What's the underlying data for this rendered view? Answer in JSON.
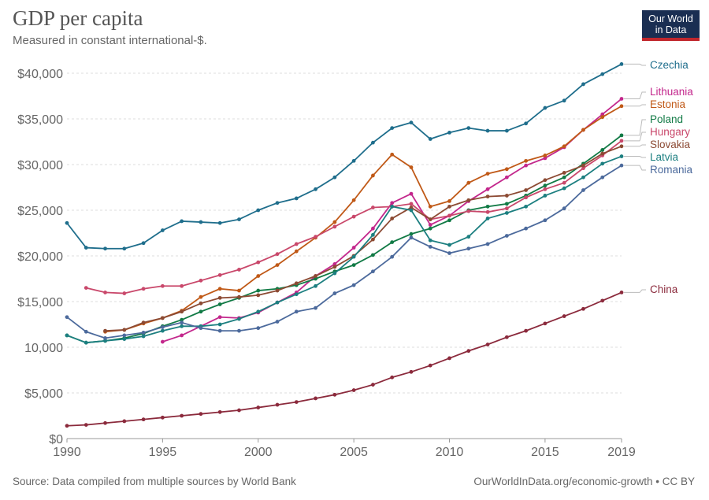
{
  "header": {
    "title": "GDP per capita",
    "subtitle": "Measured in constant international-$.",
    "logo_line1": "Our World",
    "logo_line2": "in Data"
  },
  "footer": {
    "source": "Source: Data compiled from multiple sources by World Bank",
    "license": "OurWorldInData.org/economic-growth • CC BY"
  },
  "chart_data": {
    "type": "line",
    "title": "GDP per capita",
    "subtitle": "Measured in constant international-$.",
    "xlim": [
      1990,
      2019
    ],
    "ylim": [
      0,
      40000
    ],
    "x_ticks": [
      1990,
      1995,
      2000,
      2005,
      2010,
      2015,
      2019
    ],
    "y_ticks": [
      0,
      5000,
      10000,
      15000,
      20000,
      25000,
      30000,
      35000,
      40000
    ],
    "y_tick_labels": [
      "$0",
      "$5,000",
      "10,000",
      "$15,000",
      "$20,000",
      "$25,000",
      "$30,000",
      "$35,000",
      "$40,000"
    ],
    "grid": "horizontal dashed",
    "legend": "right (labels at line ends)",
    "series": [
      {
        "name": "Czechia",
        "color": "#1f6e8c",
        "x_start": 1990,
        "values": [
          23600,
          20900,
          20800,
          20800,
          21400,
          22800,
          23800,
          23700,
          23600,
          24000,
          25000,
          25800,
          26300,
          27300,
          28600,
          30400,
          32400,
          34000,
          34600,
          32800,
          33500,
          34000,
          33700,
          33700,
          34500,
          36200,
          37000,
          38800,
          39900,
          41000
        ]
      },
      {
        "name": "Lithuania",
        "color": "#c3278c",
        "x_start": 1995,
        "values": [
          10600,
          11300,
          12300,
          13300,
          13200,
          13800,
          14900,
          16000,
          17800,
          19100,
          20900,
          23000,
          25800,
          26800,
          23400,
          24400,
          26000,
          27300,
          28600,
          29900,
          30700,
          31900,
          33800,
          35500,
          37200
        ]
      },
      {
        "name": "Estonia",
        "color": "#c05917",
        "x_start": 1992,
        "values": [
          11700,
          11900,
          12600,
          13200,
          14000,
          15500,
          16400,
          16200,
          17800,
          19000,
          20500,
          22000,
          23700,
          26100,
          28800,
          31100,
          29700,
          25400,
          26000,
          28000,
          29000,
          29500,
          30400,
          31000,
          32000,
          33800,
          35200,
          36400
        ]
      },
      {
        "name": "Poland",
        "color": "#117a45",
        "x_start": 1990,
        "values": [
          11300,
          10500,
          10700,
          11000,
          11500,
          12300,
          13000,
          13900,
          14700,
          15400,
          16200,
          16400,
          16800,
          17500,
          18300,
          19000,
          20100,
          21500,
          22400,
          23000,
          23900,
          25000,
          25400,
          25700,
          26600,
          27700,
          28600,
          30100,
          31600,
          33200
        ]
      },
      {
        "name": "Hungary",
        "color": "#c9486b",
        "x_start": 1991,
        "values": [
          16500,
          16000,
          15900,
          16400,
          16700,
          16700,
          17300,
          17900,
          18500,
          19300,
          20200,
          21300,
          22100,
          23200,
          24300,
          25300,
          25400,
          25700,
          24000,
          24400,
          24900,
          24800,
          25200,
          26400,
          27300,
          28000,
          29600,
          31000,
          32600
        ]
      },
      {
        "name": "Slovakia",
        "color": "#8c4a33",
        "x_start": 1992,
        "values": [
          11800,
          11900,
          12700,
          13200,
          13900,
          14800,
          15400,
          15500,
          15700,
          16200,
          17000,
          17800,
          18800,
          20000,
          21800,
          24100,
          25300,
          24000,
          25400,
          26100,
          26500,
          26600,
          27200,
          28300,
          29100,
          29900,
          31200,
          32000
        ]
      },
      {
        "name": "Latvia",
        "color": "#1c7f80",
        "x_start": 1990,
        "values": [
          11300,
          10500,
          10700,
          10900,
          11200,
          11800,
          12300,
          12300,
          12500,
          13100,
          13900,
          14900,
          15800,
          16700,
          18100,
          19900,
          22300,
          25400,
          25000,
          21700,
          21200,
          22100,
          24100,
          24700,
          25400,
          26600,
          27400,
          28600,
          30100,
          30900
        ]
      },
      {
        "name": "Romania",
        "color": "#4c6a9c",
        "x_start": 1990,
        "values": [
          13300,
          11700,
          11000,
          11300,
          11600,
          12200,
          12700,
          12100,
          11800,
          11800,
          12100,
          12800,
          13900,
          14300,
          15900,
          16800,
          18300,
          19900,
          22000,
          21000,
          20300,
          20800,
          21300,
          22200,
          23000,
          23900,
          25200,
          27200,
          28600,
          29900
        ]
      },
      {
        "name": "China",
        "color": "#8b2a3c",
        "x_start": 1990,
        "values": [
          1400,
          1500,
          1700,
          1900,
          2100,
          2300,
          2500,
          2700,
          2900,
          3100,
          3400,
          3700,
          4000,
          4400,
          4800,
          5300,
          5900,
          6700,
          7300,
          8000,
          8800,
          9600,
          10300,
          11100,
          11800,
          12600,
          13400,
          14200,
          15100,
          16000
        ]
      }
    ],
    "label_order": [
      "Czechia",
      "Lithuania",
      "Estonia",
      "Poland",
      "Hungary",
      "Slovakia",
      "Latvia",
      "Romania",
      "China"
    ]
  }
}
